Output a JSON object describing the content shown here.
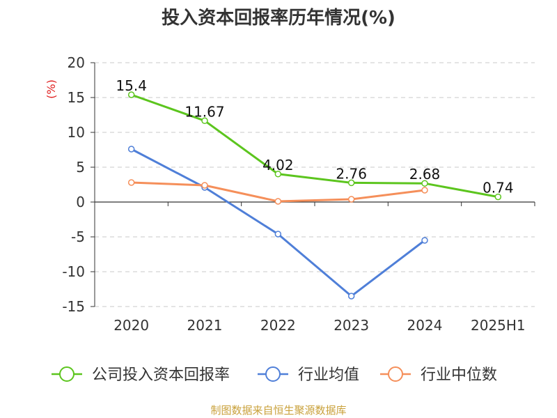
{
  "chart_data": {
    "type": "line",
    "title": "投入资本回报率历年情况(%)",
    "ylabel": "(%)",
    "categories": [
      "2020",
      "2021",
      "2022",
      "2023",
      "2024",
      "2025H1"
    ],
    "ylim": [
      -15,
      20
    ],
    "yticks": [
      20,
      15,
      10,
      5,
      0,
      -5,
      -10,
      -15
    ],
    "grid": true,
    "legend_position": "bottom",
    "series": [
      {
        "name": "公司投入资本回报率",
        "color": "#5cc51e",
        "values": [
          15.4,
          11.67,
          4.02,
          2.76,
          2.68,
          0.74
        ],
        "labels": [
          "15.4",
          "11.67",
          "4.02",
          "2.76",
          "2.68",
          "0.74"
        ]
      },
      {
        "name": "行业均值",
        "color": "#4f7fd8",
        "values": [
          7.6,
          2.1,
          -4.6,
          -13.5,
          -5.5,
          null
        ]
      },
      {
        "name": "行业中位数",
        "color": "#f58f5a",
        "values": [
          2.8,
          2.4,
          0.1,
          0.4,
          1.7,
          null
        ]
      }
    ]
  },
  "source": "制图数据来自恒生聚源数据库"
}
